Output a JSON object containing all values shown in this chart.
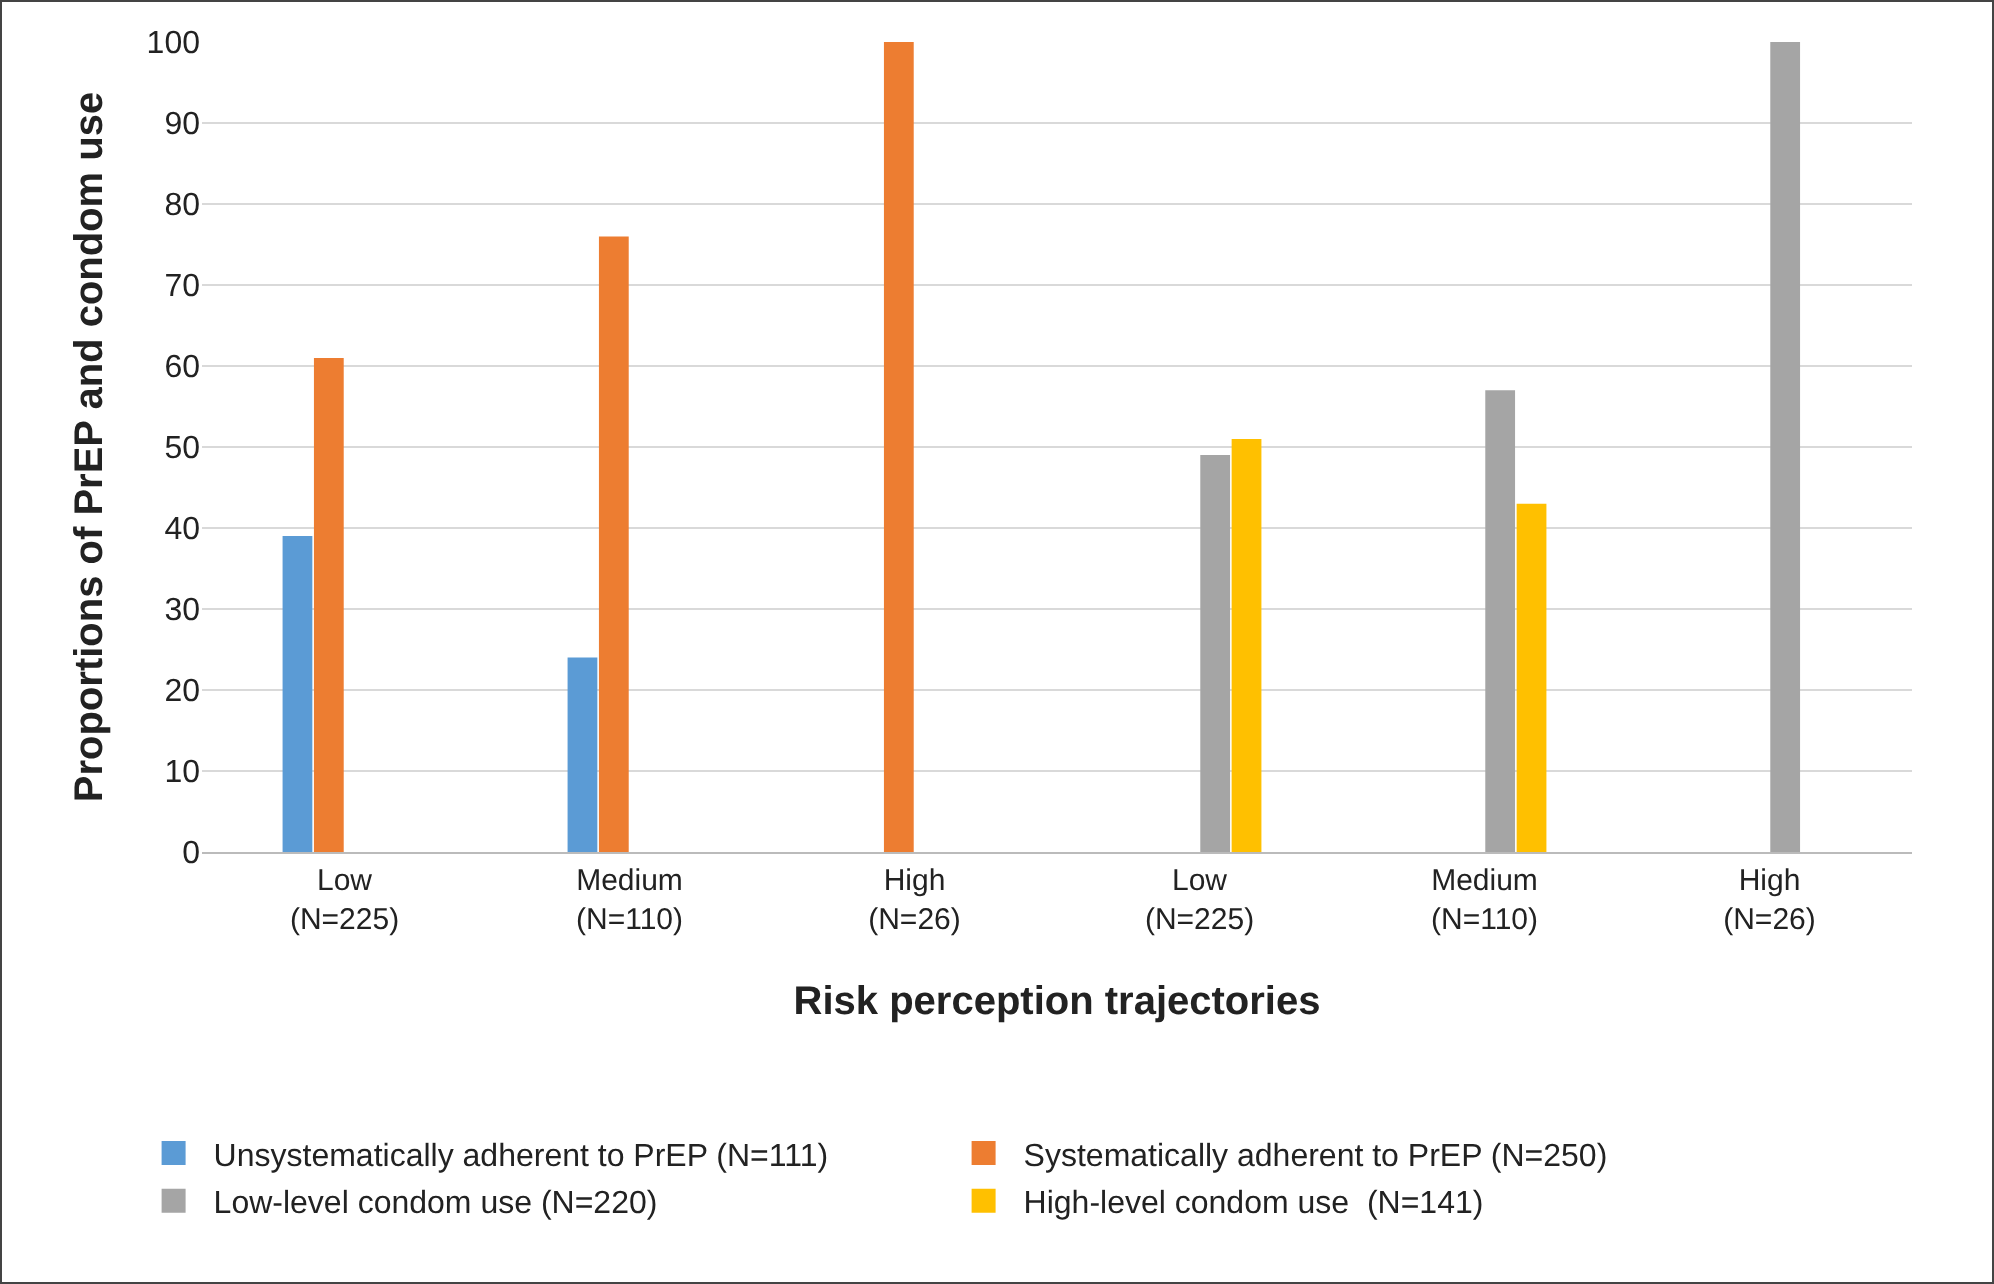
{
  "chart_data": {
    "type": "bar",
    "xlabel": "Risk perception trajectories",
    "ylabel": "Proportions of PrEP and condom use",
    "categories": [
      "Low\n(N=225)",
      "Medium\n(N=110)",
      "High\n(N=26)",
      "Low\n(N=225)",
      "Medium\n(N=110)",
      "High\n(N=26)"
    ],
    "series": [
      {
        "name": "Unsystematically adherent to PrEP (N=111)",
        "color": "#5b9bd5",
        "values": [
          39,
          24,
          null,
          null,
          null,
          null
        ]
      },
      {
        "name": "Systematically adherent to PrEP (N=250)",
        "color": "#ed7d31",
        "values": [
          61,
          76,
          100,
          null,
          null,
          null
        ]
      },
      {
        "name": "Low-level condom use (N=220)",
        "color": "#a5a5a5",
        "values": [
          null,
          null,
          null,
          49,
          57,
          100
        ]
      },
      {
        "name": "High-level condom use  (N=141)",
        "color": "#ffc000",
        "values": [
          null,
          null,
          null,
          51,
          43,
          null
        ]
      }
    ],
    "ylim": [
      0,
      100
    ],
    "yticks": [
      0,
      10,
      20,
      30,
      40,
      50,
      60,
      70,
      80,
      90,
      100
    ],
    "grid": "y",
    "legend": "bottom"
  }
}
